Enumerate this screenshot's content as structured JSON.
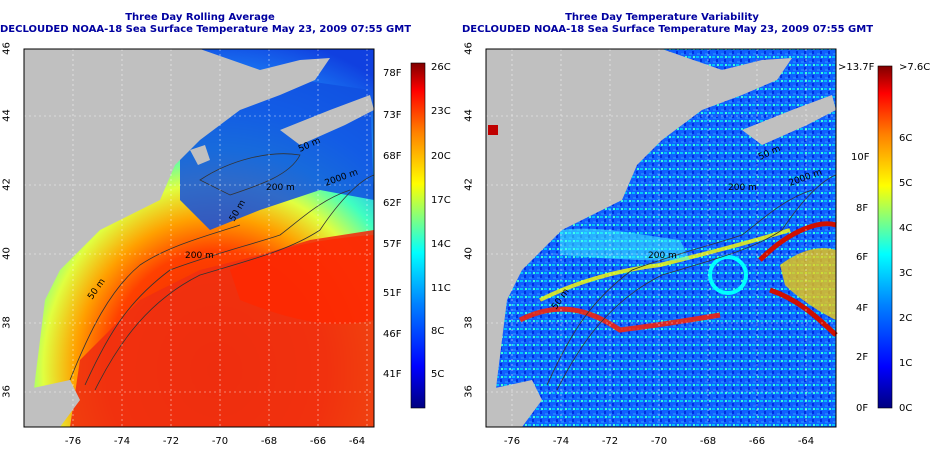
{
  "colors": {
    "land": "#c0c0c0",
    "title": "#0000a0",
    "scale": [
      "#000080",
      "#0000ff",
      "#0080ff",
      "#00ffff",
      "#80ff80",
      "#ffff00",
      "#ff8000",
      "#ff0000",
      "#800000"
    ]
  },
  "left": {
    "title": "Three Day Rolling Average",
    "subtitle": "DECLOUDED NOAA-18 Sea Surface Temperature May 23, 2009 07:55 GMT",
    "x_ticks": [
      "-76",
      "-74",
      "-72",
      "-70",
      "-68",
      "-66",
      "-64"
    ],
    "y_ticks": [
      "36",
      "38",
      "40",
      "42",
      "44",
      "46"
    ],
    "contour_labels": [
      "50 m",
      "200 m",
      "2000 m",
      "200 m",
      "50 m",
      "50 m"
    ],
    "scale_f": [
      "78F",
      "73F",
      "68F",
      "62F",
      "57F",
      "51F",
      "46F",
      "41F"
    ],
    "scale_c": [
      "26C",
      "23C",
      "20C",
      "17C",
      "14C",
      "11C",
      "8C",
      "5C"
    ]
  },
  "right": {
    "title": "Three Day Temperature Variability",
    "subtitle": "DECLOUDED NOAA-18 Sea Surface Temperature May 23, 2009 07:55 GMT",
    "x_ticks": [
      "-76",
      "-74",
      "-72",
      "-70",
      "-68",
      "-66",
      "-64"
    ],
    "y_ticks": [
      "36",
      "38",
      "40",
      "42",
      "44",
      "46"
    ],
    "contour_labels": [
      "50 m",
      "200 m",
      "2000 m",
      "200 m",
      "50 m"
    ],
    "scale_f": [
      ">13.7F",
      "10F",
      "8F",
      "6F",
      "4F",
      "2F",
      "0F"
    ],
    "scale_c": [
      ">7.6C",
      "6C",
      "5C",
      "4C",
      "3C",
      "2C",
      "1C",
      "0C"
    ]
  }
}
